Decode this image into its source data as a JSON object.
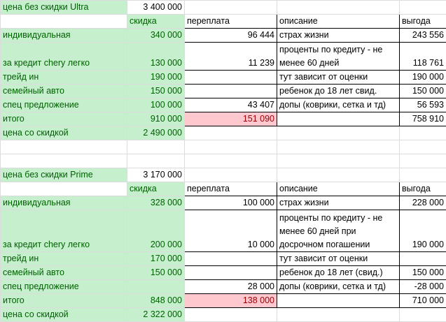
{
  "sheet": {
    "rows": [
      [
        "цена без скидки Ultra",
        "3 400 000",
        null,
        null,
        null
      ],
      [
        null,
        "скидка",
        "переплата",
        "описание",
        "выгода"
      ],
      [
        "индивидуальная",
        "340 000",
        "96 444",
        "страх жизни",
        "243 556"
      ],
      [
        "за кредит chery легко",
        "130 000",
        "11 239",
        "проценты по кредиту - не менее 60 дней",
        "118 761"
      ],
      [
        "трейд ин",
        "190 000",
        null,
        "тут зависит от оценки",
        "190 000"
      ],
      [
        "семейный авто",
        "150 000",
        null,
        "ребенок до 18 лет свид.",
        "150 000"
      ],
      [
        "спец предложение",
        "100 000",
        "43 407",
        "допы (коврики, сетка и тд)",
        "56 593"
      ],
      [
        "итого",
        "910 000",
        "151 090",
        null,
        "758 910"
      ],
      [
        "цена со скидкой",
        "2 490 000",
        null,
        null,
        null
      ],
      [
        null,
        null,
        null,
        null,
        null
      ],
      [
        null,
        null,
        null,
        null,
        null
      ],
      [
        "цена без скидки Prime",
        "3 170 000",
        null,
        null,
        null
      ],
      [
        null,
        "скидка",
        "переплата",
        "описание",
        "выгода"
      ],
      [
        "индивидуальная",
        "328 000",
        "100 000",
        "страх жизни",
        "228 000"
      ],
      [
        "за кредит chery легко",
        "200 000",
        "10 000",
        "проценты по кредиту - не менее 60 дней при досрочном погашении",
        "190 000"
      ],
      [
        "трейд ин",
        "170 000",
        null,
        "тут зависит от оценки",
        null
      ],
      [
        "семейный авто",
        "150 000",
        null,
        "ребенок до 18 лет (свид.)",
        "150 000"
      ],
      [
        "спец предложение",
        null,
        "28 000",
        "допы (коврики, сетка и тд)",
        "-28 000"
      ],
      [
        "итого",
        "848 000",
        "138 000",
        null,
        "710 000"
      ],
      [
        "цена со скидкой",
        "2 322 000",
        null,
        null,
        null
      ]
    ]
  }
}
